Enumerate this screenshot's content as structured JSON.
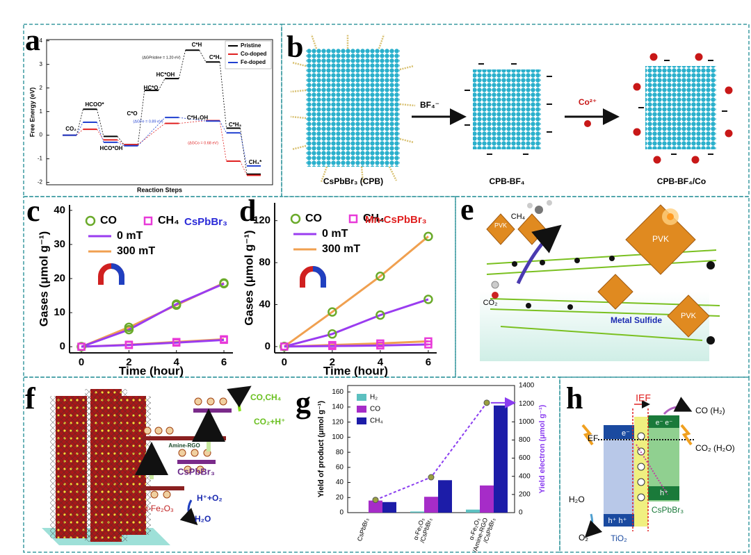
{
  "panel_labels": [
    "a",
    "b",
    "c",
    "d",
    "e",
    "f",
    "g",
    "h"
  ],
  "chart_data": [
    {
      "type": "levels",
      "xlabel": "Reaction Steps",
      "ylabel": "Free Energy (eV)",
      "categories": [
        null,
        null,
        null,
        null,
        null,
        null,
        null,
        null,
        null,
        null
      ],
      "ylim": [
        -2.1,
        4.05
      ],
      "yticks": [
        -2,
        -1,
        0,
        1,
        2,
        3,
        4
      ],
      "series": [
        {
          "name": "Pristine",
          "color": "#000000",
          "values": [
            0,
            1.1,
            -0.05,
            -0.4,
            1.9,
            2.4,
            3.6,
            3.1,
            0.3,
            -1.65
          ]
        },
        {
          "name": "Co-doped",
          "color": "#e02020",
          "values": [
            0,
            0.25,
            -0.2,
            -0.4,
            null,
            0.5,
            null,
            0.62,
            -1.1,
            -1.7
          ]
        },
        {
          "name": "Fe-doped",
          "color": "#1f3fd0",
          "values": [
            0,
            0.55,
            -0.3,
            -0.45,
            null,
            0.75,
            null,
            0.6,
            0.1,
            -1.3
          ]
        }
      ],
      "annotations": [
        "CO₂",
        "HCOO*",
        "HCO*OH",
        "C*O",
        "HC*O",
        "HC*OH",
        "C*H",
        "C*H₂",
        "C*H₂OH",
        "C*H₃",
        "CH₄*",
        "(ΔGPristine = 1.20 eV)",
        "(ΔGFe = 0.89 eV)",
        "(ΔGCo = 0.68 eV)"
      ]
    },
    {
      "type": "line",
      "label": "CsPbBr₃",
      "label_color": "#2a2ad8",
      "xlabel": "Time (hour)",
      "ylabel": "Gases (μmol g⁻¹)",
      "x": [
        0,
        2,
        4,
        6
      ],
      "xlim": [
        -0.5,
        6.38
      ],
      "xticks": [
        0,
        2,
        4,
        6
      ],
      "ylim": [
        -1.8,
        41.6
      ],
      "yticks": [
        0,
        10,
        20,
        30,
        40
      ],
      "markers": [
        {
          "name": "CO",
          "color": "#6aaa2a",
          "shape": "circle"
        },
        {
          "name": "CH₄",
          "color": "#e83ad8",
          "shape": "square"
        }
      ],
      "series": [
        {
          "name": "0 mT",
          "color": "#9a3cf0",
          "values": {
            "CO": [
              0,
              5,
              12.5,
              18.5
            ],
            "CH₄": [
              0,
              0.5,
              1.2,
              2
            ]
          }
        },
        {
          "name": "300 mT",
          "color": "#f0a050",
          "values": {
            "CO": [
              0,
              5.7,
              12.2,
              18.7
            ],
            "CH₄": [
              0,
              0.6,
              1.4,
              2.2
            ]
          }
        }
      ]
    },
    {
      "type": "line",
      "label": "Mn-CsPbBr₃",
      "label_color": "#e02020",
      "xlabel": "Time (hour)",
      "ylabel": "Gases (μmol g⁻¹)",
      "x": [
        0,
        2,
        4,
        6
      ],
      "xlim": [
        -0.4,
        6.35
      ],
      "xticks": [
        0,
        2,
        4,
        6
      ],
      "ylim": [
        -6,
        137
      ],
      "yticks": [
        0,
        40,
        80,
        120
      ],
      "markers": [
        {
          "name": "CO",
          "color": "#6aaa2a",
          "shape": "circle"
        },
        {
          "name": "CH₄",
          "color": "#e83ad8",
          "shape": "square"
        }
      ],
      "series": [
        {
          "name": "0 mT",
          "color": "#9a3cf0",
          "values": {
            "CO": [
              0,
              12,
              30,
              45
            ],
            "CH₄": [
              0,
              0.5,
              1,
              2
            ]
          }
        },
        {
          "name": "300 mT",
          "color": "#f0a050",
          "values": {
            "CO": [
              0,
              33,
              67,
              105
            ],
            "CH₄": [
              0,
              1.5,
              3,
              5
            ]
          }
        }
      ]
    },
    {
      "type": "bar",
      "ylabel": "Yield of product (μmol g⁻¹)",
      "y2label": "Yield electron (μmol g⁻¹)",
      "y2label_color": "#8a3cf0",
      "categories": [
        [
          "CsPbBr₃"
        ],
        [
          "α-Fe₂O₃",
          "/CsPbBr₃"
        ],
        [
          "α-Fe₂O₃",
          "/Amine-RGO",
          "/CsPbBr₃"
        ]
      ],
      "ylim": [
        0,
        168.5
      ],
      "yticks": [
        0,
        20,
        40,
        60,
        80,
        100,
        120,
        140,
        160
      ],
      "y2lim": [
        0,
        1400
      ],
      "y2ticks": [
        0,
        200,
        400,
        600,
        800,
        1000,
        1200,
        1400
      ],
      "series": [
        {
          "name": "H₂",
          "color": "#5cc0c0",
          "values": [
            0,
            1.5,
            4
          ]
        },
        {
          "name": "CO",
          "color": "#a62cc8",
          "values": [
            16,
            21,
            36
          ]
        },
        {
          "name": "CH₄",
          "color": "#1c1ca8",
          "values": [
            14,
            43,
            142
          ]
        },
        {
          "axis": "y2",
          "type": "line",
          "color": "#8a3cf0",
          "marker_color": "#9aa040",
          "values": [
            140,
            390,
            1210
          ]
        }
      ]
    }
  ],
  "diagram_b": {
    "labels": [
      "CsPbBr₃ (CPB)",
      "CPB-BF₄",
      "CPB-BF₄/Co"
    ],
    "arrows": [
      "BF₄⁻",
      "Co²⁺"
    ]
  },
  "diagram_e": {
    "molecules": [
      "CH₄",
      "CO₂"
    ],
    "units": [
      "PVK",
      "PVK",
      "PVK"
    ],
    "layer": "Metal Sulfide"
  },
  "diagram_f": {
    "products": "CO,CH₄",
    "reactants": "CO₂+H⁺",
    "bridge": "Amine-RGO",
    "absorber": "CsPbBr₃",
    "oxidation": "H⁺+O₂",
    "water": "H₂O",
    "oxide": "α-Fe₂O₃"
  },
  "diagram_h": {
    "field": "IEF",
    "product": "CO (H₂)",
    "reactant": "CO₂ (H₂O)",
    "fermi": "EF",
    "water": "H₂O",
    "oxygen": "O₂",
    "left": "TiO₂",
    "right": "CsPbBr₃",
    "electron": "e⁻",
    "electrons": "e⁻ e⁻",
    "holes": "h⁺ h⁺",
    "hole": "h⁺"
  }
}
